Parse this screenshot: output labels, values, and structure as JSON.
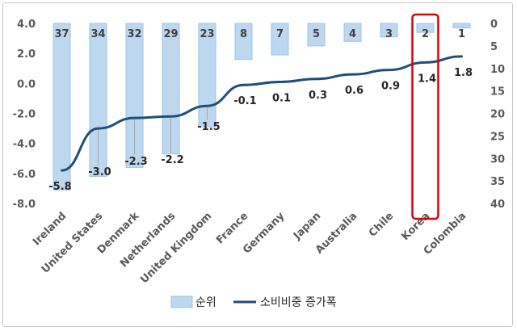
{
  "chart_data": {
    "type": "bar+line",
    "categories": [
      "Ireland",
      "United States",
      "Denmark",
      "Netherlands",
      "United Kingdom",
      "France",
      "Germany",
      "Japan",
      "Australia",
      "Chile",
      "Korea",
      "Colombia"
    ],
    "series": [
      {
        "name": "순위",
        "type": "bar",
        "axis": "secondary",
        "values": [
          37,
          34,
          32,
          29,
          23,
          8,
          7,
          5,
          4,
          3,
          2,
          1
        ],
        "color": "#bdd7ee",
        "stroke": "#9dc3e6"
      },
      {
        "name": "소비비중 증가폭",
        "type": "line",
        "axis": "primary",
        "values": [
          -5.8,
          -3.0,
          -2.3,
          -2.2,
          -1.5,
          -0.1,
          0.1,
          0.3,
          0.6,
          0.9,
          1.4,
          1.8
        ],
        "color": "#1f4e79"
      }
    ],
    "rank_labels": [
      "37",
      "34",
      "32",
      "29",
      "23",
      "8",
      "7",
      "5",
      "4",
      "3",
      "2",
      "1"
    ],
    "value_labels": [
      "-5.8",
      "-3.0",
      "-2.3",
      "-2.2",
      "-1.5",
      "-0.1",
      "0.1",
      "0.3",
      "0.6",
      "0.9",
      "1.4",
      "1.8"
    ],
    "y_primary": {
      "ticks": [
        "4.0",
        "2.0",
        "0.0",
        "-2.0",
        "-4.0",
        "-6.0",
        "-8.0"
      ],
      "ylim": [
        -8,
        4
      ]
    },
    "y_secondary": {
      "ticks": [
        "0",
        "5",
        "10",
        "15",
        "20",
        "25",
        "30",
        "35",
        "40"
      ],
      "ylim": [
        0,
        40
      ],
      "reversed": true
    },
    "highlight": {
      "category": "Korea",
      "color": "#e00000"
    },
    "grid": false,
    "legend_position": "bottom"
  }
}
